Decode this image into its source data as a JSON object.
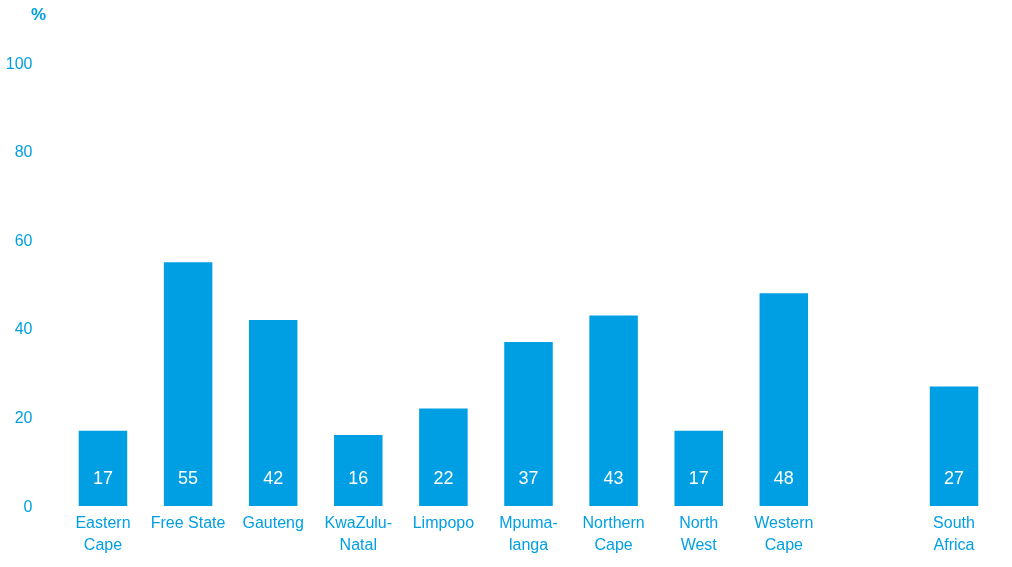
{
  "chart_data": {
    "type": "bar",
    "ylabel": "%",
    "categories": [
      "Eastern\nCape",
      "Free State",
      "Gauteng",
      "KwaZulu-\nNatal",
      "Limpopo",
      "Mpuma-\nlanga",
      "Northern\nCape",
      "North\nWest",
      "Western\nCape",
      null,
      "South\nAfrica"
    ],
    "values": [
      17,
      55,
      42,
      16,
      22,
      37,
      43,
      17,
      48,
      null,
      27
    ],
    "color": "#009fe3",
    "ylim": [
      0,
      100
    ],
    "yticks": [
      0,
      20,
      40,
      60,
      80,
      100
    ],
    "data_labels": true,
    "grid": false
  }
}
